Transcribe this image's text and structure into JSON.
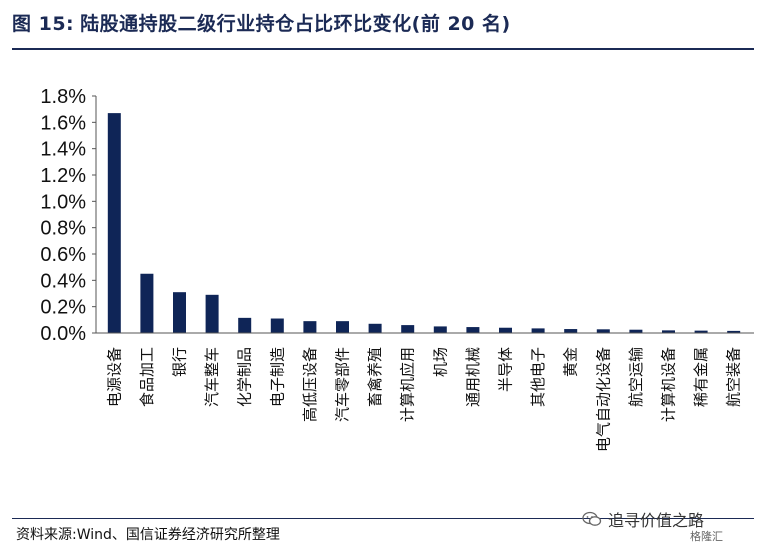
{
  "header": {
    "figure_label": "图 15:",
    "title": "陆股通持股二级行业持仓占比环比变化(前 20 名)"
  },
  "footer": {
    "source": "资料来源:Wind、国信证券经济研究所整理",
    "watermark": "追寻价值之路",
    "brand": "格隆汇"
  },
  "colors": {
    "bar": "#0f2557",
    "rule": "#1b2a55"
  },
  "chart_data": {
    "type": "bar",
    "title": "陆股通持股二级行业持仓占比环比变化(前 20 名)",
    "xlabel": "",
    "ylabel": "",
    "y_unit": "%",
    "ylim": [
      0,
      1.8
    ],
    "yticks": [
      0.0,
      0.2,
      0.4,
      0.6,
      0.8,
      1.0,
      1.2,
      1.4,
      1.6,
      1.8
    ],
    "ytick_labels": [
      "0.0%",
      "0.2%",
      "0.4%",
      "0.6%",
      "0.8%",
      "1.0%",
      "1.2%",
      "1.4%",
      "1.6%",
      "1.8%"
    ],
    "grid": false,
    "legend": "none",
    "categories": [
      "电源设备",
      "食品加工",
      "银行",
      "汽车整车",
      "化学制品",
      "电子制造",
      "高低压设备",
      "汽车零部件",
      "畜禽养殖",
      "计算机应用",
      "机场",
      "通用机械",
      "半导体",
      "其他电子",
      "黄金",
      "电气自动化设备",
      "航空运输",
      "计算机设备",
      "稀有金属",
      "航空装备"
    ],
    "values": [
      1.67,
      0.45,
      0.31,
      0.29,
      0.115,
      0.11,
      0.09,
      0.09,
      0.07,
      0.06,
      0.05,
      0.045,
      0.04,
      0.035,
      0.03,
      0.028,
      0.025,
      0.02,
      0.018,
      0.016
    ]
  }
}
